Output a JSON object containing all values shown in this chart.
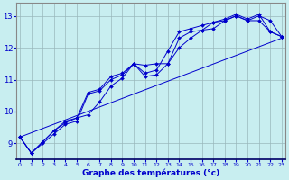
{
  "xlabel": "Graphe des températures (°c)",
  "background_color": "#c8eef0",
  "grid_color": "#9ab8bb",
  "line_color": "#0000cc",
  "x_ticks": [
    0,
    1,
    2,
    3,
    4,
    5,
    6,
    7,
    8,
    9,
    10,
    11,
    12,
    13,
    14,
    15,
    16,
    17,
    18,
    19,
    20,
    21,
    22,
    23
  ],
  "ylim": [
    8.5,
    13.4
  ],
  "xlim": [
    -0.3,
    23.3
  ],
  "yticks": [
    9,
    10,
    11,
    12,
    13
  ],
  "series": [
    {
      "x": [
        0,
        1,
        2,
        3,
        4,
        5,
        6,
        7,
        8,
        9,
        10,
        11,
        12,
        13,
        14,
        15,
        16,
        17,
        18,
        19,
        20,
        21,
        22,
        23
      ],
      "y": [
        9.2,
        8.7,
        9.0,
        9.3,
        9.6,
        9.7,
        10.55,
        10.65,
        11.0,
        11.15,
        11.5,
        11.1,
        11.15,
        11.5,
        12.3,
        12.5,
        12.55,
        12.8,
        12.85,
        13.0,
        12.85,
        12.85,
        12.5,
        12.35
      ],
      "marker": "D",
      "markersize": 2.0
    },
    {
      "x": [
        0,
        1,
        2,
        3,
        4,
        5,
        6,
        7,
        8,
        9,
        10,
        11,
        12,
        13,
        14,
        15,
        16,
        17,
        18,
        19,
        20,
        21,
        22,
        23
      ],
      "y": [
        9.2,
        8.7,
        9.05,
        9.4,
        9.65,
        9.8,
        9.9,
        10.3,
        10.8,
        11.05,
        11.5,
        11.45,
        11.5,
        11.5,
        12.0,
        12.3,
        12.55,
        12.6,
        12.85,
        13.0,
        12.85,
        13.0,
        12.85,
        12.35
      ],
      "marker": "D",
      "markersize": 2.0
    },
    {
      "x": [
        0,
        1,
        2,
        3,
        4,
        5,
        6,
        7,
        8,
        9,
        10,
        11,
        12,
        13,
        14,
        15,
        16,
        17,
        18,
        19,
        20,
        21,
        22,
        23
      ],
      "y": [
        9.2,
        8.7,
        9.05,
        9.4,
        9.7,
        9.8,
        10.6,
        10.7,
        11.1,
        11.2,
        11.5,
        11.2,
        11.3,
        11.9,
        12.5,
        12.6,
        12.7,
        12.8,
        12.9,
        13.05,
        12.9,
        13.05,
        12.5,
        12.35
      ],
      "marker": "D",
      "markersize": 2.0
    },
    {
      "x": [
        0,
        23
      ],
      "y": [
        9.2,
        12.3
      ],
      "marker": null,
      "markersize": 0
    }
  ]
}
